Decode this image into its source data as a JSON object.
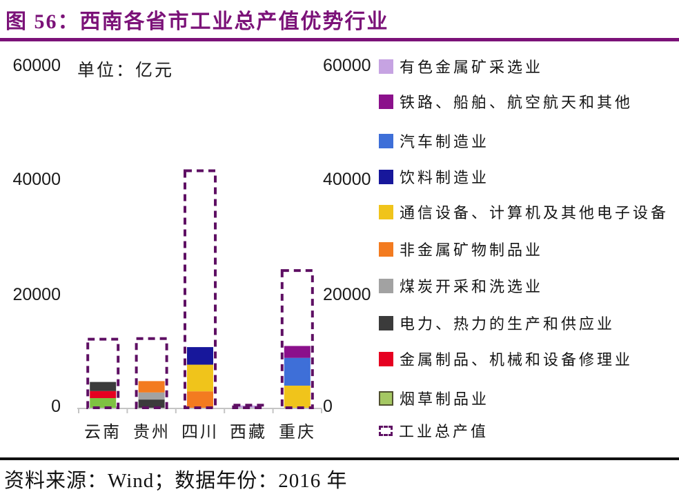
{
  "title": "图 56：西南各省市工业总产值优势行业",
  "theme": {
    "title_purple": "#7B1278",
    "outline_purple": "#5E0F63",
    "axis_line": "#C4C4C4",
    "text": "#1A1A1A"
  },
  "chart_data": {
    "type": "bar",
    "subtype": "stacked-with-total-outline",
    "unit_label": "单位：亿元",
    "ylim": [
      0,
      60000
    ],
    "y_ticks": [
      "60000",
      "40000",
      "20000",
      "0"
    ],
    "grid": "off",
    "legend_position": "right",
    "outline_series": "工业总产值",
    "categories": [
      "云南",
      "贵州",
      "四川",
      "西藏",
      "重庆"
    ],
    "bars": [
      {
        "category": "云南",
        "total_output": 12100,
        "segments": [
          {
            "industry": "烟草制品业",
            "value": 1700,
            "color": "#7EC242"
          },
          {
            "industry": "金属制品、机械和设备修理业",
            "value": 1250,
            "color": "#E60021"
          },
          {
            "industry": "电力、热力的生产和供应业",
            "value": 1600,
            "color": "#3B3B3B"
          }
        ]
      },
      {
        "category": "贵州",
        "total_output": 12200,
        "segments": [
          {
            "industry": "电力、热力的生产和供应业",
            "value": 1450,
            "color": "#3B3B3B"
          },
          {
            "industry": "煤炭开采和洗选业",
            "value": 1250,
            "color": "#A2A2A2"
          },
          {
            "industry": "非金属矿物制品业",
            "value": 2000,
            "color": "#F37B20"
          }
        ]
      },
      {
        "category": "四川",
        "total_output": 41800,
        "segments": [
          {
            "industry": "非金属矿物制品业",
            "value": 2900,
            "color": "#F37B20"
          },
          {
            "industry": "通信设备、计算机及其他电子设备",
            "value": 4700,
            "color": "#F0C41B"
          },
          {
            "industry": "饮料制造业",
            "value": 3100,
            "color": "#17179B"
          }
        ]
      },
      {
        "category": "西藏",
        "total_output": 450,
        "segments": [
          {
            "industry": "有色金属矿采选业",
            "value": 400,
            "color": "#C6A3E2"
          }
        ]
      },
      {
        "category": "重庆",
        "total_output": 24200,
        "segments": [
          {
            "industry": "通信设备、计算机及其他电子设备",
            "value": 3900,
            "color": "#F0C41B"
          },
          {
            "industry": "汽车制造业",
            "value": 4900,
            "color": "#3E6FD8"
          },
          {
            "industry": "铁路、船舶、航空航天和其他",
            "value": 2100,
            "color": "#8B108B"
          }
        ]
      }
    ]
  },
  "legend": {
    "items": [
      {
        "label": "有色金属矿采选业",
        "color": "#C6A3E2",
        "swatch": "fill"
      },
      {
        "label": "铁路、船舶、航空航天和其他",
        "color": "#8B108B",
        "swatch": "fill"
      },
      {
        "label": "汽车制造业",
        "color": "#3E6FD8",
        "swatch": "fill"
      },
      {
        "label": "饮料制造业",
        "color": "#17179B",
        "swatch": "fill"
      },
      {
        "label": "通信设备、计算机及其他电子设备",
        "color": "#F0C41B",
        "swatch": "fill"
      },
      {
        "label": "非金属矿物制品业",
        "color": "#F37B20",
        "swatch": "fill"
      },
      {
        "label": "煤炭开采和洗选业",
        "color": "#A2A2A2",
        "swatch": "fill"
      },
      {
        "label": "电力、热力的生产和供应业",
        "color": "#3B3B3B",
        "swatch": "fill"
      },
      {
        "label": "金属制品、机械和设备修理业",
        "color": "#E60021",
        "swatch": "fill"
      },
      {
        "label": "烟草制品业",
        "color": "#A5C863",
        "swatch": "fill",
        "border": "#4F4F2F"
      },
      {
        "label": "工业总产值",
        "color": "#5E0F63",
        "swatch": "dashed"
      }
    ]
  },
  "footer": {
    "source": "资料来源：Wind；数据年份：2016 年"
  }
}
